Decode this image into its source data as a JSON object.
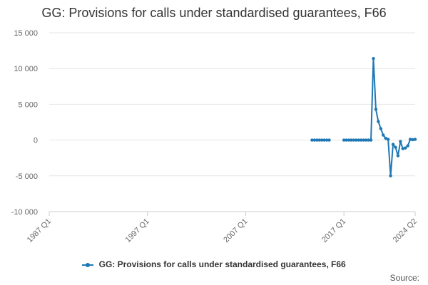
{
  "title": "GG: Provisions for calls under standardised guarantees, F66",
  "source_label": "Source:",
  "colors": {
    "series": "#1f77b4",
    "grid": "#e6e6e6",
    "axis": "#cccccc",
    "text": "#666666"
  },
  "chart_data": {
    "type": "line",
    "title": "GG: Provisions for calls under standardised guarantees, F66",
    "xlabel": "",
    "ylabel": "",
    "ylim": [
      -10000,
      15000
    ],
    "y_ticks": [
      15000,
      10000,
      5000,
      0,
      -5000,
      -10000
    ],
    "y_tick_labels": [
      "15 000",
      "10 000",
      "5 000",
      "0",
      "-5 000",
      "-10 000"
    ],
    "x_range": [
      "1987 Q1",
      "2024 Q2"
    ],
    "x_tick_labels": [
      "1987 Q1",
      "1997 Q1",
      "2007 Q1",
      "2017 Q1",
      "2024 Q2"
    ],
    "x_ticks": [
      "1987 Q1",
      "1997 Q1",
      "2007 Q1",
      "2017 Q1",
      "2024 Q2"
    ],
    "grid": true,
    "legend_position": "bottom",
    "series": [
      {
        "name": "GG: Provisions for calls under standardised guarantees, F66",
        "segments": [
          {
            "points": [
              [
                "2013 Q4",
                0
              ],
              [
                "2014 Q1",
                0
              ],
              [
                "2014 Q2",
                0
              ],
              [
                "2014 Q3",
                0
              ],
              [
                "2014 Q4",
                0
              ],
              [
                "2015 Q1",
                0
              ],
              [
                "2015 Q2",
                0
              ],
              [
                "2015 Q3",
                0
              ]
            ]
          },
          {
            "points": [
              [
                "2017 Q1",
                0
              ],
              [
                "2017 Q2",
                0
              ],
              [
                "2017 Q3",
                0
              ],
              [
                "2017 Q4",
                0
              ],
              [
                "2018 Q1",
                0
              ],
              [
                "2018 Q2",
                0
              ],
              [
                "2018 Q3",
                0
              ],
              [
                "2018 Q4",
                0
              ],
              [
                "2019 Q1",
                0
              ],
              [
                "2019 Q2",
                0
              ],
              [
                "2019 Q3",
                0
              ],
              [
                "2019 Q4",
                0
              ],
              [
                "2020 Q1",
                11400
              ],
              [
                "2020 Q2",
                4300
              ],
              [
                "2020 Q3",
                2600
              ],
              [
                "2020 Q4",
                1600
              ],
              [
                "2021 Q1",
                700
              ],
              [
                "2021 Q2",
                250
              ],
              [
                "2021 Q3",
                100
              ],
              [
                "2021 Q4",
                -5000
              ],
              [
                "2022 Q1",
                -600
              ],
              [
                "2022 Q2",
                -1000
              ],
              [
                "2022 Q3",
                -2200
              ],
              [
                "2022 Q4",
                -200
              ],
              [
                "2023 Q1",
                -1200
              ],
              [
                "2023 Q2",
                -1100
              ],
              [
                "2023 Q3",
                -800
              ],
              [
                "2023 Q4",
                100
              ],
              [
                "2024 Q1",
                50
              ],
              [
                "2024 Q2",
                100
              ]
            ]
          }
        ]
      }
    ]
  }
}
